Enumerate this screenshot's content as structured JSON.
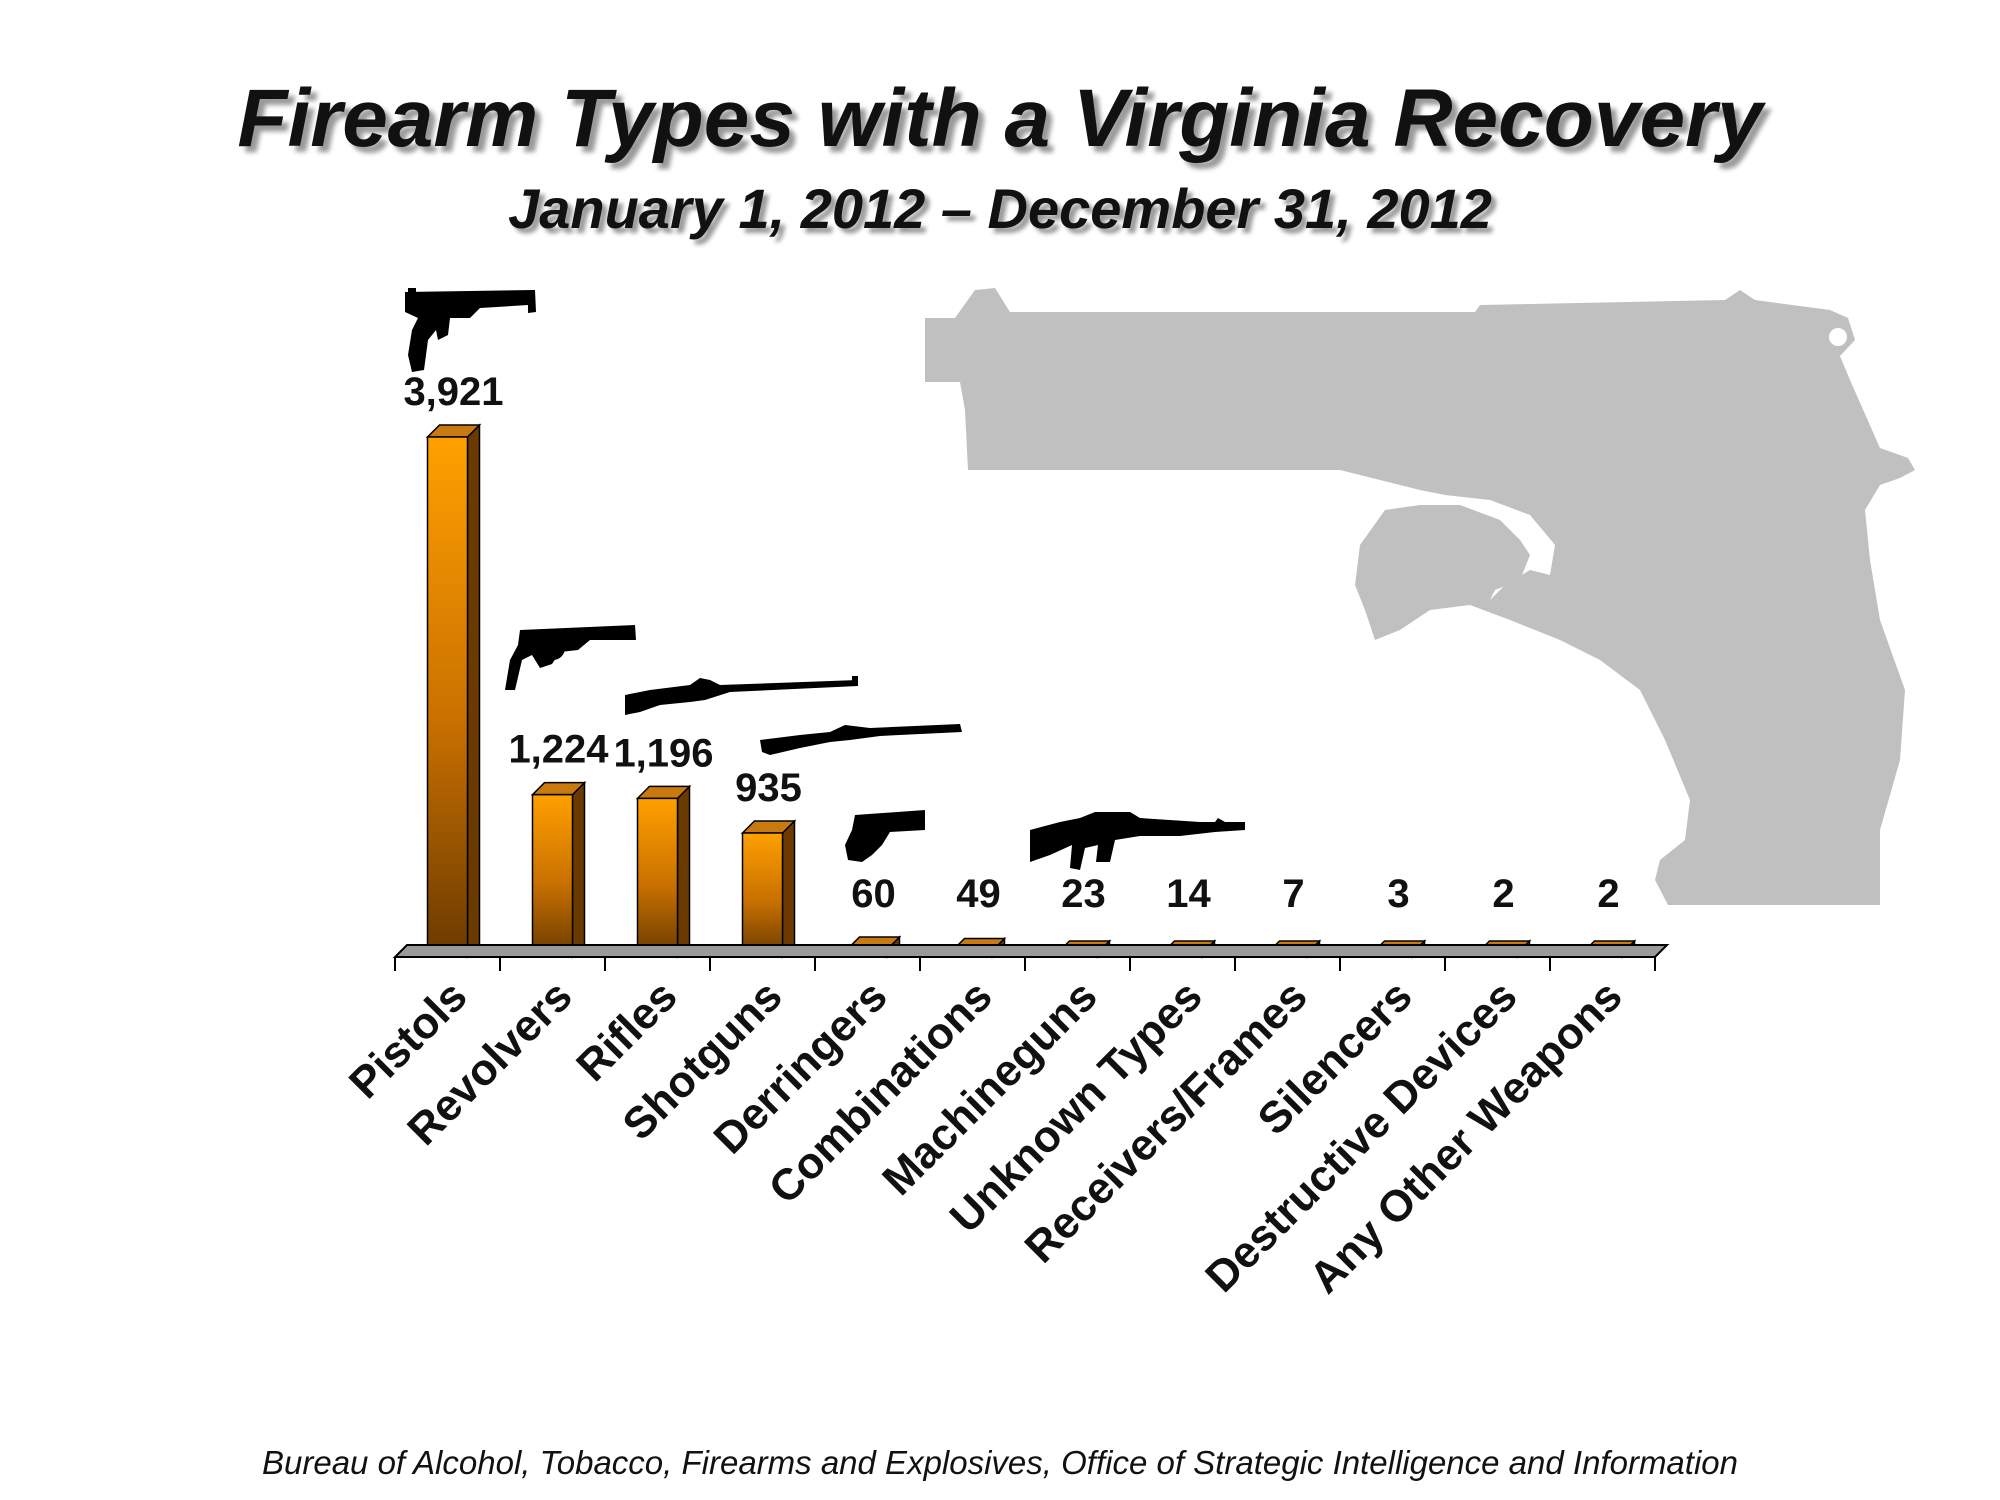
{
  "chart_data": {
    "type": "bar",
    "title": "Firearm Types with a Virginia Recovery",
    "subtitle": "January 1, 2012 – December 31, 2012",
    "source": "Bureau of Alcohol, Tobacco, Firearms and Explosives, Office of Strategic Intelligence and Information",
    "categories": [
      "Pistols",
      "Revolvers",
      "Rifles",
      "Shotguns",
      "Derringers",
      "Combinations",
      "Machineguns",
      "Unknown Types",
      "Receivers/Frames",
      "Silencers",
      "Destructive Devices",
      "Any Other Weapons"
    ],
    "values": [
      3921,
      1224,
      1196,
      935,
      60,
      49,
      23,
      14,
      7,
      3,
      2,
      2
    ],
    "value_labels": [
      "3,921",
      "1,224",
      "1,196",
      "935",
      "60",
      "49",
      "23",
      "14",
      "7",
      "3",
      "2",
      "2"
    ],
    "ylim": [
      0,
      3921
    ],
    "grid": false,
    "legend": "none",
    "bar_color": "#f59a00",
    "icons": [
      "pistol-icon",
      "revolver-icon",
      "rifle-icon",
      "shotgun-icon",
      "derringer-icon",
      "machinegun-icon",
      "pistol-silhouette-icon"
    ],
    "icon_color": "#000000",
    "silhouette_color": "#c0c0c0"
  }
}
